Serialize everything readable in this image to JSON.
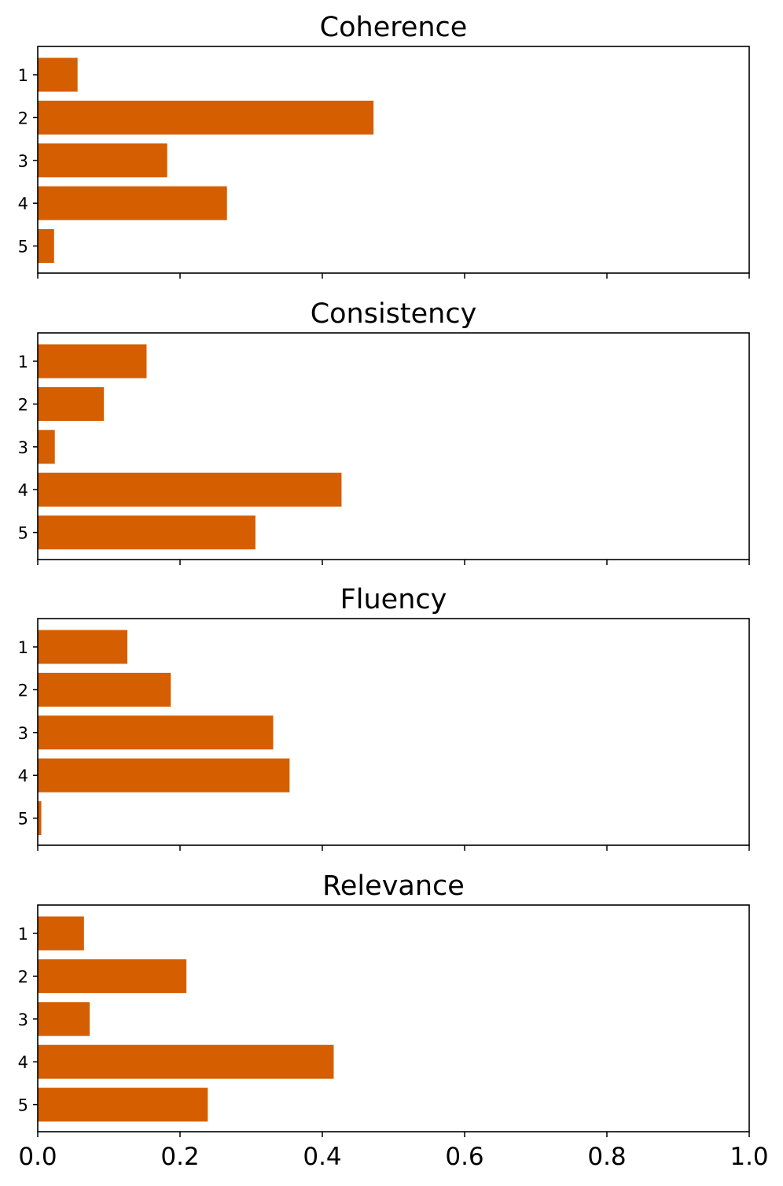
{
  "chart_data": [
    {
      "type": "bar",
      "orientation": "horizontal",
      "title": "Coherence",
      "categories": [
        "1",
        "2",
        "3",
        "4",
        "5"
      ],
      "values": [
        0.056,
        0.472,
        0.182,
        0.266,
        0.023
      ],
      "xlim": [
        0,
        1
      ],
      "xticks": [
        "0.0",
        "0.2",
        "0.4",
        "0.6",
        "0.8",
        "1.0"
      ],
      "show_xtick_labels": false,
      "grid": false
    },
    {
      "type": "bar",
      "orientation": "horizontal",
      "title": "Consistency",
      "categories": [
        "1",
        "2",
        "3",
        "4",
        "5"
      ],
      "values": [
        0.153,
        0.093,
        0.024,
        0.427,
        0.306
      ],
      "xlim": [
        0,
        1
      ],
      "xticks": [
        "0.0",
        "0.2",
        "0.4",
        "0.6",
        "0.8",
        "1.0"
      ],
      "show_xtick_labels": false,
      "grid": false
    },
    {
      "type": "bar",
      "orientation": "horizontal",
      "title": "Fluency",
      "categories": [
        "1",
        "2",
        "3",
        "4",
        "5"
      ],
      "values": [
        0.126,
        0.187,
        0.331,
        0.354,
        0.005
      ],
      "xlim": [
        0,
        1
      ],
      "xticks": [
        "0.0",
        "0.2",
        "0.4",
        "0.6",
        "0.8",
        "1.0"
      ],
      "show_xtick_labels": false,
      "grid": false
    },
    {
      "type": "bar",
      "orientation": "horizontal",
      "title": "Relevance",
      "categories": [
        "1",
        "2",
        "3",
        "4",
        "5"
      ],
      "values": [
        0.065,
        0.209,
        0.073,
        0.416,
        0.239
      ],
      "xlim": [
        0,
        1
      ],
      "xticks": [
        "0.0",
        "0.2",
        "0.4",
        "0.6",
        "0.8",
        "1.0"
      ],
      "show_xtick_labels": true,
      "grid": false
    }
  ],
  "colors": {
    "bar": "#d55e00",
    "axis": "#000000"
  }
}
